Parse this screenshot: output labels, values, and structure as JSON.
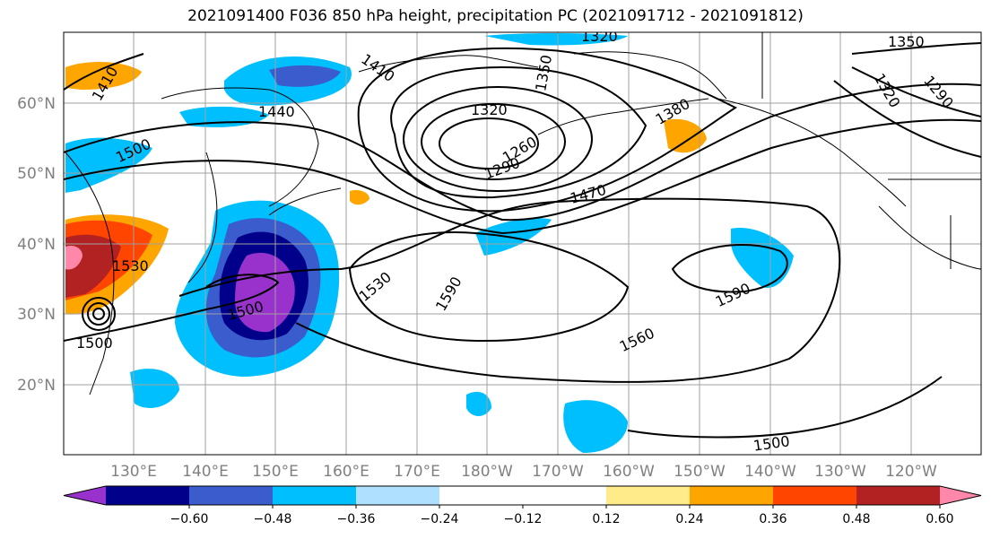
{
  "title": "2021091400 F036 850 hPa height, precipitation PC (2021091712 - 2021091812)",
  "lat_labels": [
    "60°N",
    "50°N",
    "40°N",
    "30°N",
    "20°N"
  ],
  "lon_labels": [
    "130°E",
    "140°E",
    "150°E",
    "160°E",
    "170°E",
    "180°W",
    "170°W",
    "160°W",
    "150°W",
    "140°W",
    "130°W",
    "120°W"
  ],
  "colorbar": {
    "colors": [
      "#9932cc",
      "#00008b",
      "#3a5ccc",
      "#00bfff",
      "#afe0ff",
      "#ffffff",
      "#ffffff",
      "#ffeb8a",
      "#ffa500",
      "#ff4500",
      "#b22222",
      "#ff88aa"
    ],
    "ticks": [
      "−0.60",
      "−0.48",
      "−0.36",
      "−0.24",
      "−0.12",
      "0.12",
      "0.24",
      "0.36",
      "0.48",
      "0.60"
    ]
  },
  "contour_labels": [
    "1410",
    "1410",
    "1440",
    "1500",
    "1320",
    "1350",
    "1320",
    "1260",
    "1290",
    "1380",
    "1350",
    "1320",
    "1290",
    "1470",
    "1530",
    "1530",
    "1590",
    "1590",
    "1500",
    "1500",
    "1560",
    "1500"
  ]
}
